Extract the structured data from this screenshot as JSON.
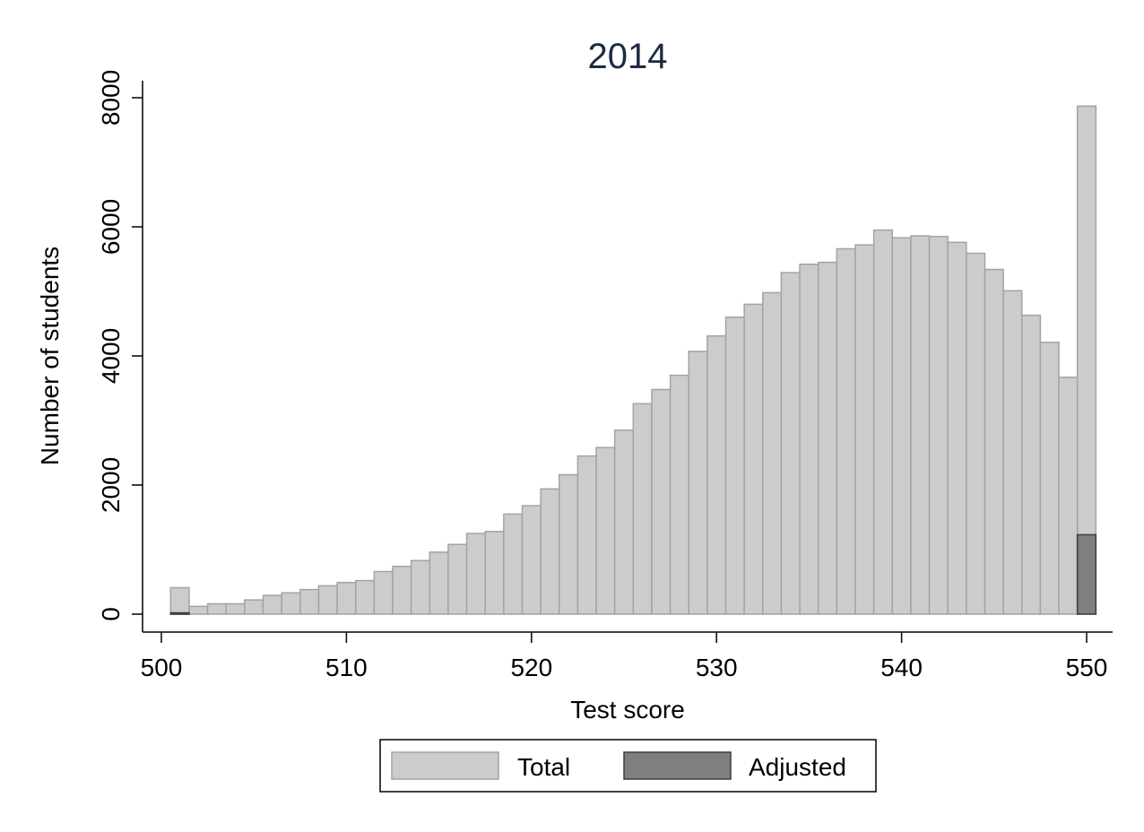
{
  "chart_data": {
    "type": "bar",
    "title": "2014",
    "xlabel": "Test score",
    "ylabel": "Number of students",
    "xlim": [
      500,
      551
    ],
    "ylim": [
      0,
      8000
    ],
    "xticks": [
      500,
      510,
      520,
      530,
      540,
      550
    ],
    "yticks": [
      0,
      2000,
      4000,
      6000,
      8000
    ],
    "grid": false,
    "legend_position": "bottom",
    "colors": {
      "Total": "#cccccc",
      "Adjusted": "#7f7f7f",
      "total_edge": "#a3a3a3",
      "adjusted_edge": "#3d3d3d"
    },
    "x": [
      501,
      502,
      503,
      504,
      505,
      506,
      507,
      508,
      509,
      510,
      511,
      512,
      513,
      514,
      515,
      516,
      517,
      518,
      519,
      520,
      521,
      522,
      523,
      524,
      525,
      526,
      527,
      528,
      529,
      530,
      531,
      532,
      533,
      534,
      535,
      536,
      537,
      538,
      539,
      540,
      541,
      542,
      543,
      544,
      545,
      546,
      547,
      548,
      549,
      550
    ],
    "series": [
      {
        "name": "Total",
        "values": [
          410,
          120,
          160,
          160,
          220,
          290,
          330,
          380,
          440,
          490,
          520,
          660,
          740,
          830,
          960,
          1080,
          1250,
          1280,
          1550,
          1680,
          1940,
          2160,
          2450,
          2580,
          2850,
          3260,
          3480,
          3700,
          4070,
          4310,
          4600,
          4800,
          4980,
          5290,
          5420,
          5450,
          5660,
          5720,
          5950,
          5830,
          5860,
          5850,
          5760,
          5590,
          5340,
          5010,
          4630,
          4210,
          3670,
          7870
        ]
      },
      {
        "name": "Adjusted",
        "values": [
          20,
          0,
          0,
          0,
          0,
          0,
          0,
          0,
          0,
          0,
          0,
          0,
          0,
          0,
          0,
          0,
          0,
          0,
          0,
          0,
          0,
          0,
          0,
          0,
          0,
          0,
          0,
          0,
          0,
          0,
          0,
          0,
          0,
          0,
          0,
          0,
          0,
          0,
          0,
          0,
          0,
          0,
          0,
          0,
          0,
          0,
          0,
          0,
          0,
          1230
        ]
      }
    ]
  }
}
